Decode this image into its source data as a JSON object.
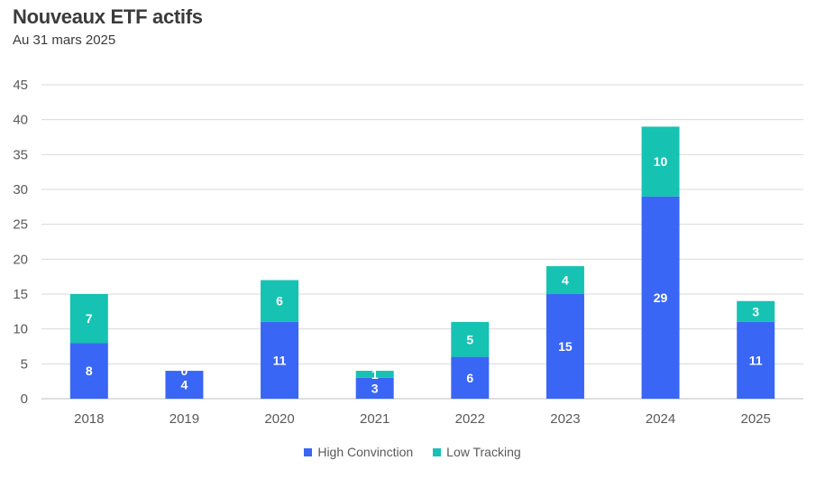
{
  "chart_data": {
    "type": "bar",
    "stacked": true,
    "title": "Nouveaux ETF actifs",
    "subtitle": "Au 31 mars 2025",
    "categories": [
      "2018",
      "2019",
      "2020",
      "2021",
      "2022",
      "2023",
      "2024",
      "2025"
    ],
    "series": [
      {
        "name": "High Convinction",
        "color": "#3a66f5",
        "values": [
          8,
          4,
          11,
          3,
          6,
          15,
          29,
          11
        ]
      },
      {
        "name": "Low Tracking",
        "color": "#16c2b1",
        "values": [
          7,
          0,
          6,
          1,
          5,
          4,
          10,
          3
        ]
      }
    ],
    "ylim": [
      0,
      45
    ],
    "yticks": [
      0,
      5,
      10,
      15,
      20,
      25,
      30,
      35,
      40,
      45
    ],
    "grid": true,
    "legend_position": "bottom"
  }
}
